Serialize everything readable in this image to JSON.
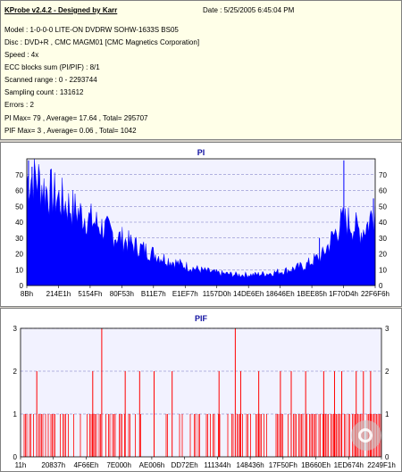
{
  "header": {
    "title": "KProbe v2.4.2 - Designed by Karr",
    "date": "Date : 5/25/2005 6:45:04 PM",
    "lines": [
      "Model : 1-0-0-0 LITE-ON DVDRW SOHW-1633S BS05",
      "Disc : DVD+R , CMC MAGM01 [CMC Magnetics Corporation]",
      "Speed : 4x",
      "ECC blocks sum (PI/PIF) : 8/1",
      "Scanned range : 0 - 2293744",
      "Sampling count : 131612",
      "Errors : 2",
      "PI Max= 79 , Average= 17.64 , Total= 295707",
      "PIF Max= 3 , Average= 0.06 , Total= 1042"
    ]
  },
  "chart_data": [
    {
      "type": "area",
      "title": "PI",
      "ylim": [
        0,
        80
      ],
      "y_ticks": [
        0,
        10,
        20,
        30,
        40,
        50,
        60,
        70
      ],
      "x_tick_labels": [
        "8Bh",
        "214E1h",
        "5154Fh",
        "80F53h",
        "B11E7h",
        "E1EF7h",
        "1157D0h",
        "14DE6Eh",
        "18646Eh",
        "1BEE85h",
        "1F70D4h",
        "22F6F6h"
      ],
      "color": "#0000ff",
      "grid": true,
      "profile": [
        [
          0,
          68
        ],
        [
          0.02,
          72
        ],
        [
          0.05,
          63
        ],
        [
          0.1,
          55
        ],
        [
          0.15,
          47
        ],
        [
          0.2,
          40
        ],
        [
          0.25,
          33
        ],
        [
          0.3,
          27
        ],
        [
          0.35,
          22
        ],
        [
          0.4,
          17
        ],
        [
          0.45,
          13
        ],
        [
          0.5,
          10
        ],
        [
          0.55,
          8
        ],
        [
          0.6,
          7
        ],
        [
          0.65,
          7
        ],
        [
          0.7,
          8
        ],
        [
          0.75,
          10
        ],
        [
          0.8,
          13
        ],
        [
          0.85,
          20
        ],
        [
          0.88,
          32
        ],
        [
          0.9,
          40
        ],
        [
          0.92,
          42
        ],
        [
          0.94,
          38
        ],
        [
          0.96,
          35
        ],
        [
          0.98,
          40
        ],
        [
          1.0,
          52
        ]
      ],
      "spikes": [
        [
          0.005,
          79
        ],
        [
          0.015,
          75
        ],
        [
          0.84,
          30
        ],
        [
          0.91,
          79
        ],
        [
          0.995,
          55
        ]
      ]
    },
    {
      "type": "bar",
      "title": "PIF",
      "ylim": [
        0,
        3
      ],
      "y_ticks": [
        0,
        1,
        2,
        3
      ],
      "x_tick_labels": [
        "11h",
        "20837h",
        "4F66Eh",
        "7E000h",
        "AE006h",
        "DD72Eh",
        "111344h",
        "148436h",
        "17F50Fh",
        "1B660Eh",
        "1ED674h",
        "2249F1h"
      ],
      "color": "#ff0000",
      "grid": true,
      "twos": [
        0.045,
        0.2,
        0.29,
        0.33,
        0.37,
        0.42,
        0.55,
        0.61,
        0.66,
        0.72,
        0.75,
        0.79,
        0.84,
        0.87,
        0.89,
        0.93,
        0.95,
        0.97
      ],
      "threes": [
        0.225,
        0.595
      ]
    }
  ]
}
